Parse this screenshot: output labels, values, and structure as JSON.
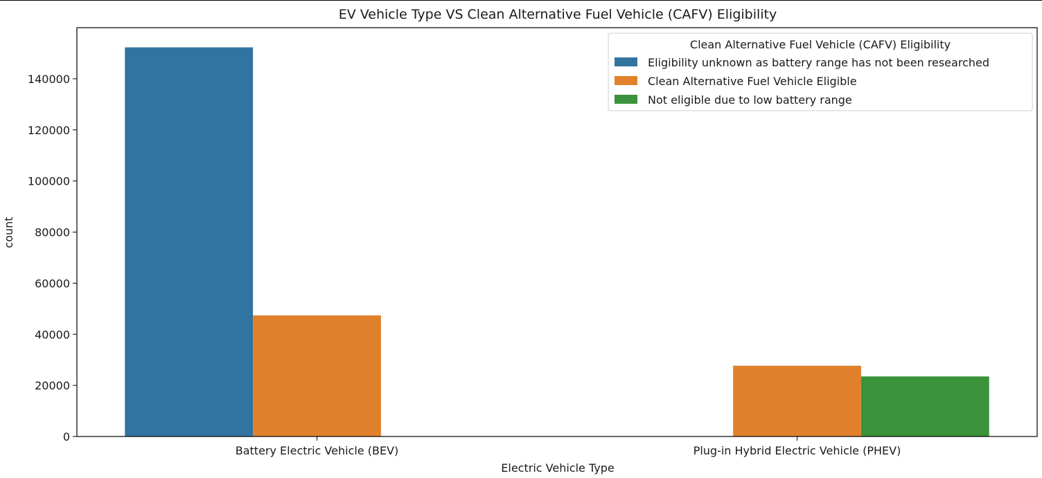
{
  "chart_data": {
    "type": "bar",
    "title": "EV Vehicle Type VS Clean Alternative Fuel Vehicle (CAFV) Eligibility",
    "xlabel": "Electric Vehicle Type",
    "ylabel": "count",
    "categories": [
      "Battery Electric Vehicle (BEV)",
      "Plug-in Hybrid Electric Vehicle (PHEV)"
    ],
    "series": [
      {
        "name": "Eligibility unknown as battery range has not been researched",
        "values": [
          152300,
          0
        ],
        "color": "#3274a1"
      },
      {
        "name": "Clean Alternative Fuel Vehicle Eligible",
        "values": [
          47400,
          27700
        ],
        "color": "#e1812c"
      },
      {
        "name": "Not eligible due to low battery range",
        "values": [
          0,
          23500
        ],
        "color": "#3a923a"
      }
    ],
    "ylim": [
      0,
      160000
    ],
    "yticks": [
      0,
      20000,
      40000,
      60000,
      80000,
      100000,
      120000,
      140000
    ],
    "grid": false,
    "legend": {
      "title": "Clean Alternative Fuel Vehicle (CAFV) Eligibility",
      "placement": "top-right"
    }
  }
}
